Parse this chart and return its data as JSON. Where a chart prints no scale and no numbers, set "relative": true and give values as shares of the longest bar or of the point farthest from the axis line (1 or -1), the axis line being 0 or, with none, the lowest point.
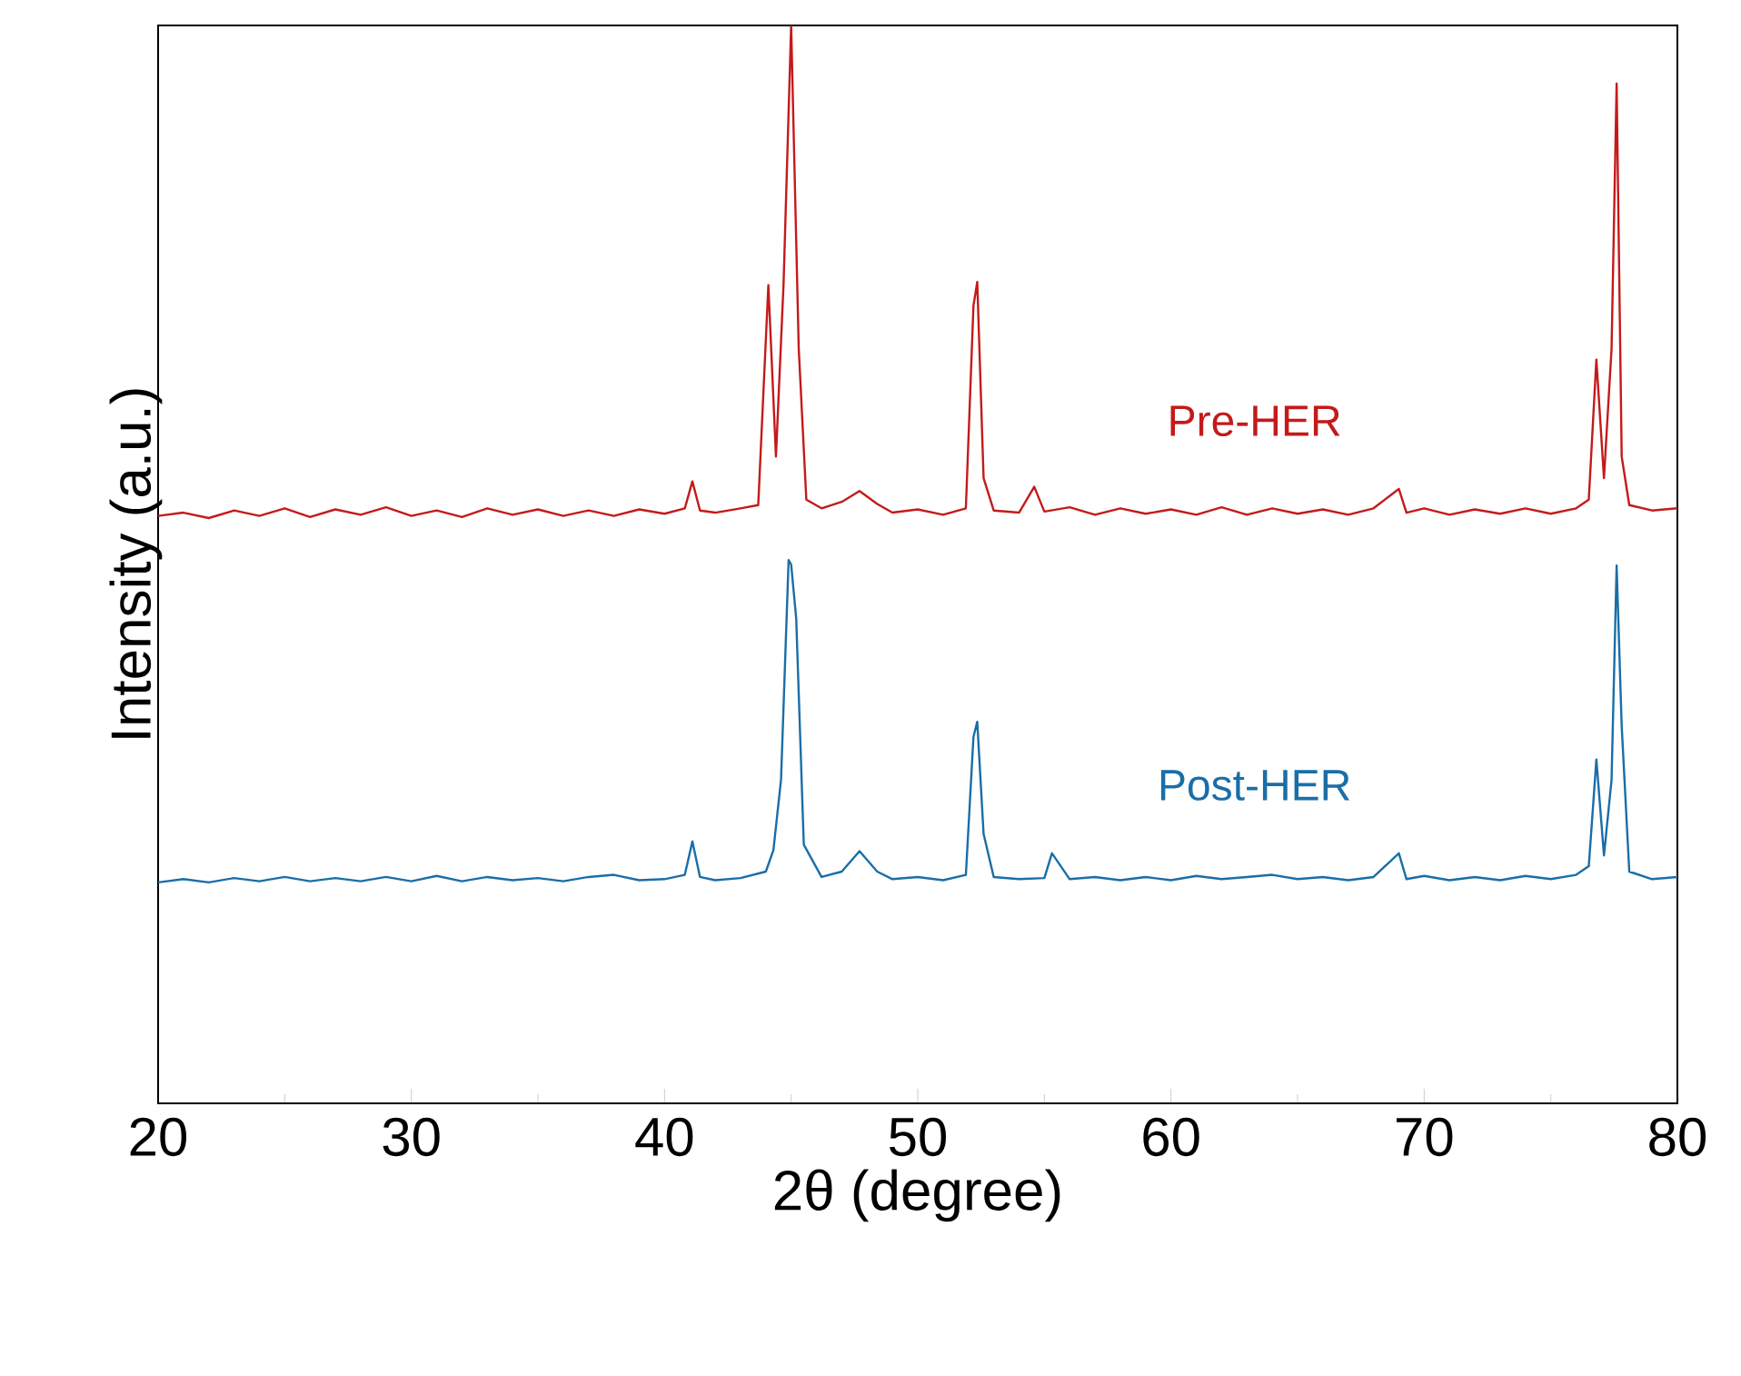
{
  "chart_data": {
    "type": "line",
    "xlabel": "2θ (degree)",
    "ylabel": "Intensity (a.u.)",
    "relative": true,
    "xlim": [
      20,
      80
    ],
    "xticks": [
      20,
      30,
      40,
      50,
      60,
      70,
      80
    ],
    "series": [
      {
        "name": "Pre-HER",
        "color": "#c41a1a",
        "x": [
          20,
          21,
          22,
          23,
          24,
          25,
          26,
          27,
          28,
          29,
          30,
          31,
          32,
          33,
          34,
          35,
          36,
          37,
          38,
          39,
          40,
          40.8,
          41.1,
          41.4,
          42,
          43,
          43.7,
          44.1,
          44.4,
          44.7,
          45.0,
          45.3,
          45.6,
          46.2,
          47,
          47.7,
          48.4,
          49,
          50,
          51,
          51.9,
          52.2,
          52.35,
          52.6,
          53,
          54,
          54.6,
          55,
          56,
          57,
          58,
          59,
          60,
          61,
          62,
          63,
          64,
          65,
          66,
          67,
          68,
          69,
          69.3,
          70,
          71,
          72,
          73,
          74,
          75,
          76,
          76.5,
          76.8,
          77.1,
          77.4,
          77.6,
          77.8,
          78.1,
          79,
          80
        ],
        "values": [
          0.545,
          0.548,
          0.543,
          0.55,
          0.545,
          0.552,
          0.544,
          0.551,
          0.546,
          0.553,
          0.545,
          0.55,
          0.544,
          0.552,
          0.546,
          0.551,
          0.545,
          0.55,
          0.545,
          0.551,
          0.547,
          0.552,
          0.577,
          0.55,
          0.548,
          0.552,
          0.555,
          0.759,
          0.6,
          0.76,
          1.0,
          0.7,
          0.56,
          0.552,
          0.558,
          0.568,
          0.556,
          0.548,
          0.551,
          0.546,
          0.552,
          0.74,
          0.762,
          0.58,
          0.55,
          0.548,
          0.572,
          0.549,
          0.553,
          0.546,
          0.552,
          0.547,
          0.551,
          0.546,
          0.553,
          0.546,
          0.552,
          0.547,
          0.551,
          0.546,
          0.552,
          0.57,
          0.548,
          0.552,
          0.546,
          0.551,
          0.547,
          0.552,
          0.547,
          0.552,
          0.56,
          0.69,
          0.58,
          0.7,
          0.946,
          0.6,
          0.555,
          0.55,
          0.552
        ]
      },
      {
        "name": "Post-HER",
        "color": "#1a6ea8",
        "x": [
          20,
          21,
          22,
          23,
          24,
          25,
          26,
          27,
          28,
          29,
          30,
          31,
          32,
          33,
          34,
          35,
          36,
          37,
          38,
          39,
          40,
          40.8,
          41.1,
          41.4,
          42,
          43,
          44.0,
          44.3,
          44.6,
          44.9,
          45.0,
          45.2,
          45.5,
          46.2,
          47,
          47.7,
          48.4,
          49,
          50,
          51,
          51.9,
          52.2,
          52.35,
          52.6,
          53,
          54,
          55,
          55.3,
          56,
          57,
          58,
          59,
          60,
          61,
          62,
          63,
          64,
          65,
          66,
          67,
          68,
          69,
          69.3,
          70,
          71,
          72,
          73,
          74,
          75,
          76,
          76.5,
          76.8,
          77.1,
          77.4,
          77.6,
          77.8,
          78.1,
          79,
          80
        ],
        "values": [
          0.205,
          0.208,
          0.205,
          0.209,
          0.206,
          0.21,
          0.206,
          0.209,
          0.206,
          0.21,
          0.206,
          0.211,
          0.206,
          0.21,
          0.207,
          0.209,
          0.206,
          0.21,
          0.212,
          0.207,
          0.208,
          0.212,
          0.243,
          0.21,
          0.207,
          0.209,
          0.215,
          0.235,
          0.3,
          0.504,
          0.5,
          0.45,
          0.24,
          0.21,
          0.215,
          0.234,
          0.215,
          0.208,
          0.21,
          0.207,
          0.212,
          0.34,
          0.354,
          0.25,
          0.21,
          0.208,
          0.209,
          0.232,
          0.208,
          0.21,
          0.207,
          0.21,
          0.207,
          0.211,
          0.208,
          0.21,
          0.212,
          0.208,
          0.21,
          0.207,
          0.21,
          0.232,
          0.208,
          0.211,
          0.207,
          0.21,
          0.207,
          0.211,
          0.208,
          0.212,
          0.22,
          0.319,
          0.23,
          0.3,
          0.499,
          0.35,
          0.215,
          0.208,
          0.21
        ]
      }
    ]
  }
}
